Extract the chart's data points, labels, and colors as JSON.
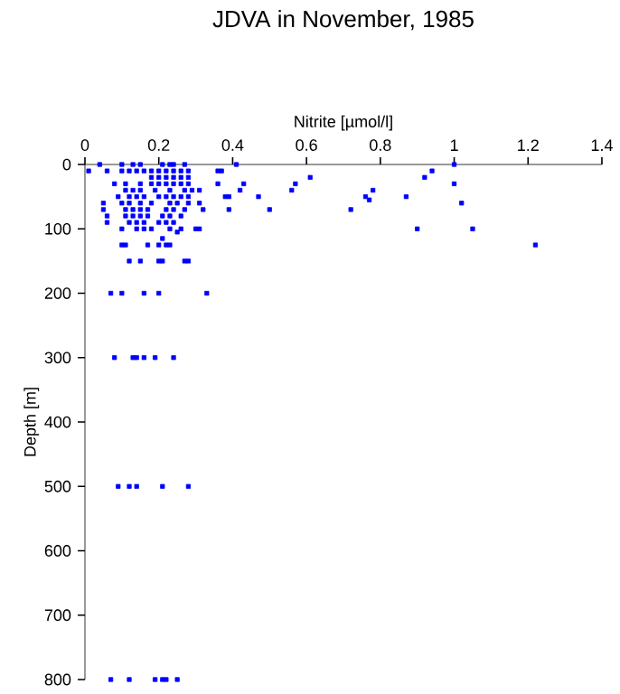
{
  "chart_data": {
    "type": "scatter",
    "title": "JDVA in November, 1985",
    "xlabel": "Nitrite [µmol/l]",
    "ylabel": "Depth [m]",
    "xlim": [
      0,
      1.4
    ],
    "xticks": [
      0,
      0.2,
      0.4,
      0.6,
      0.8,
      1,
      1.2,
      1.4
    ],
    "ylim": [
      800,
      0
    ],
    "yticks": [
      0,
      100,
      200,
      300,
      400,
      500,
      600,
      700,
      800
    ],
    "marker": "square",
    "color": "#0000ff",
    "x": [
      0.04,
      0.1,
      0.13,
      0.15,
      0.21,
      0.23,
      0.24,
      0.27,
      0.41,
      1.0,
      0.01,
      0.06,
      0.1,
      0.12,
      0.14,
      0.16,
      0.18,
      0.2,
      0.22,
      0.24,
      0.26,
      0.28,
      0.36,
      0.37,
      0.94,
      0.18,
      0.2,
      0.22,
      0.24,
      0.26,
      0.28,
      0.61,
      0.92,
      0.08,
      0.11,
      0.15,
      0.18,
      0.2,
      0.22,
      0.24,
      0.26,
      0.28,
      0.36,
      0.43,
      0.57,
      1.0,
      0.11,
      0.13,
      0.15,
      0.19,
      0.23,
      0.27,
      0.29,
      0.31,
      0.42,
      0.56,
      0.78,
      0.09,
      0.12,
      0.14,
      0.16,
      0.2,
      0.22,
      0.24,
      0.26,
      0.28,
      0.38,
      0.39,
      0.47,
      0.76,
      0.87,
      0.77,
      0.05,
      0.1,
      0.12,
      0.15,
      0.18,
      0.23,
      0.25,
      0.28,
      0.31,
      1.02,
      0.05,
      0.11,
      0.13,
      0.15,
      0.17,
      0.22,
      0.24,
      0.27,
      0.32,
      0.39,
      0.5,
      0.72,
      0.06,
      0.11,
      0.13,
      0.15,
      0.17,
      0.21,
      0.23,
      0.26,
      0.06,
      0.12,
      0.14,
      0.16,
      0.2,
      0.22,
      0.24,
      0.1,
      0.14,
      0.16,
      0.18,
      0.23,
      0.26,
      0.3,
      0.31,
      0.9,
      1.05,
      0.25,
      0.21,
      0.1,
      0.11,
      0.17,
      0.2,
      0.22,
      0.23,
      1.22,
      0.12,
      0.15,
      0.2,
      0.21,
      0.27,
      0.28,
      0.07,
      0.1,
      0.16,
      0.2,
      0.33,
      0.08,
      0.13,
      0.14,
      0.16,
      0.19,
      0.24,
      0.09,
      0.12,
      0.14,
      0.21,
      0.28,
      0.07,
      0.12,
      0.19,
      0.21,
      0.22,
      0.25
    ],
    "values": [
      0,
      0,
      0,
      0,
      0,
      0,
      0,
      0,
      0,
      0,
      10,
      10,
      10,
      10,
      10,
      10,
      10,
      10,
      10,
      10,
      10,
      10,
      10,
      10,
      10,
      20,
      20,
      20,
      20,
      20,
      20,
      20,
      20,
      30,
      30,
      30,
      30,
      30,
      30,
      30,
      30,
      30,
      30,
      30,
      30,
      30,
      40,
      40,
      40,
      40,
      40,
      40,
      40,
      40,
      40,
      40,
      40,
      50,
      50,
      50,
      50,
      50,
      50,
      50,
      50,
      50,
      50,
      50,
      50,
      50,
      50,
      55,
      60,
      60,
      60,
      60,
      60,
      60,
      60,
      60,
      60,
      60,
      70,
      70,
      70,
      70,
      70,
      70,
      70,
      70,
      70,
      70,
      70,
      70,
      80,
      80,
      80,
      80,
      80,
      80,
      80,
      80,
      90,
      90,
      90,
      90,
      90,
      90,
      90,
      100,
      100,
      100,
      100,
      100,
      100,
      100,
      100,
      100,
      100,
      105,
      115,
      125,
      125,
      125,
      125,
      125,
      125,
      125,
      150,
      150,
      150,
      150,
      150,
      150,
      200,
      200,
      200,
      200,
      200,
      300,
      300,
      300,
      300,
      300,
      300,
      500,
      500,
      500,
      500,
      500,
      800,
      800,
      800,
      800,
      800,
      800
    ]
  }
}
